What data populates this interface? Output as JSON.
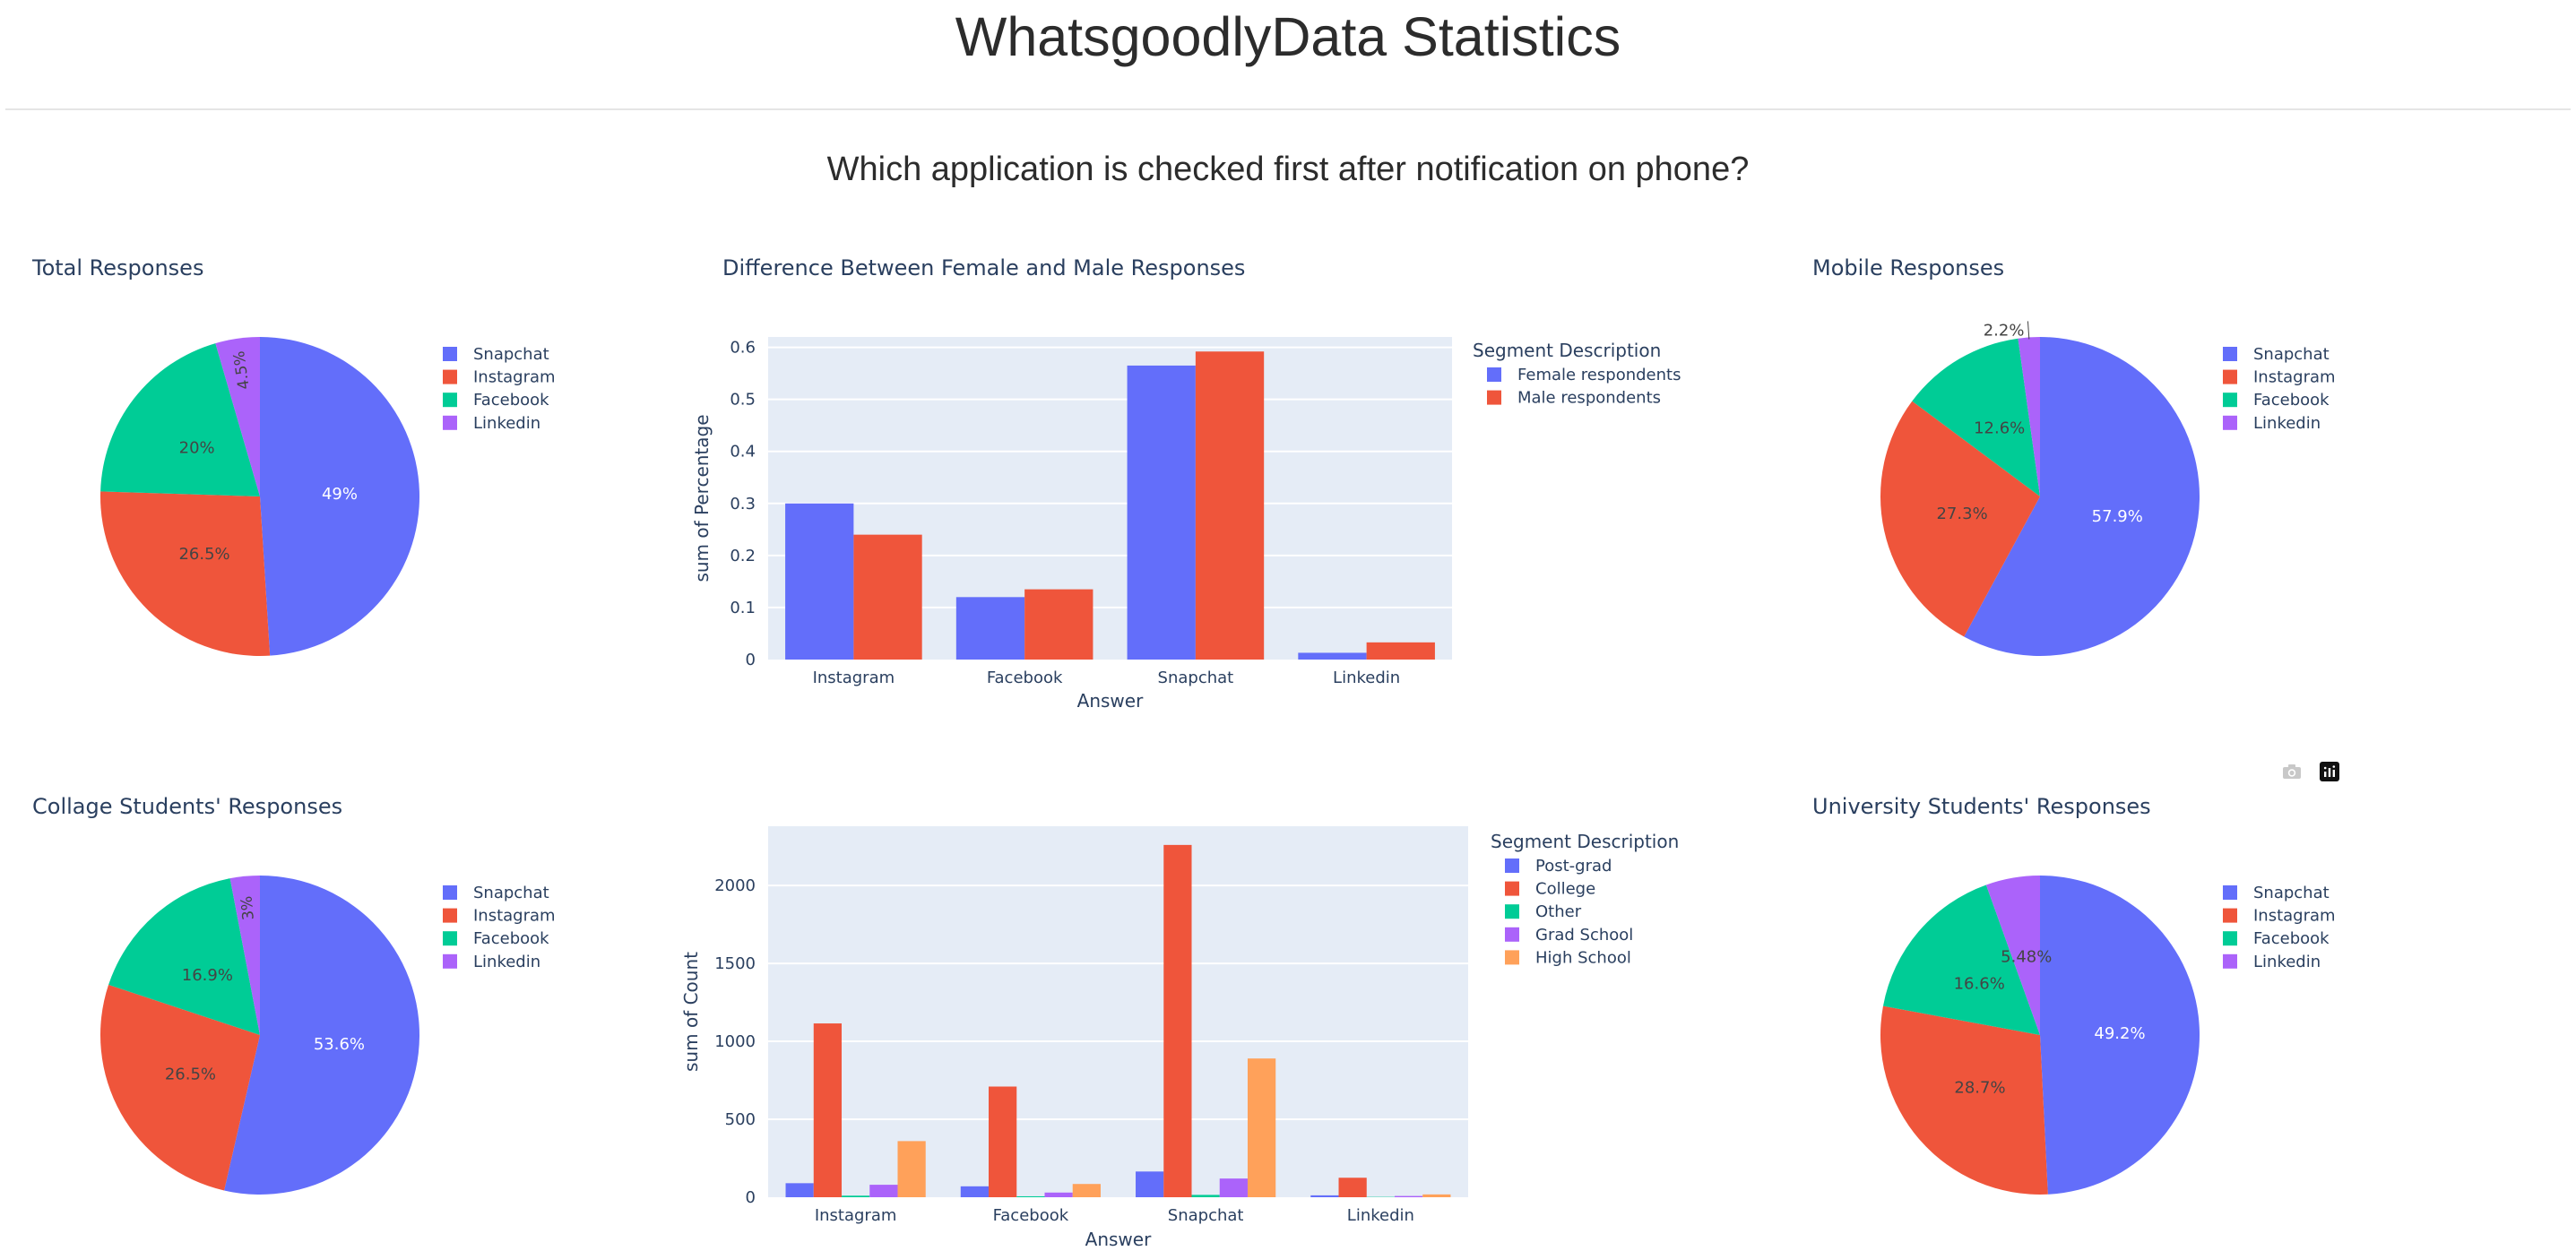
{
  "page": {
    "title": "WhatsgoodlyData Statistics",
    "question": "Which application is checked first after notification on phone?"
  },
  "colors": {
    "snapchat": "#636efa",
    "instagram": "#EF553B",
    "facebook": "#00cc96",
    "linkedin": "#ab63fa",
    "high_school": "#FFA15A",
    "plot_bg": "#E5ECF6"
  },
  "icons": [
    "camera-icon",
    "plotly-logo-icon"
  ],
  "chart_data": [
    {
      "id": "total",
      "type": "pie",
      "title": "Total Responses",
      "labels": [
        "Snapchat",
        "Instagram",
        "Facebook",
        "Linkedin"
      ],
      "values": [
        49,
        26.5,
        20,
        4.5
      ],
      "text_labels": [
        "49%",
        "26.5%",
        "20%",
        "4.5%"
      ],
      "legend": "right"
    },
    {
      "id": "gender",
      "type": "bar",
      "title": "Difference Between Female and Male Responses",
      "categories": [
        "Instagram",
        "Facebook",
        "Snapchat",
        "Linkedin"
      ],
      "series": [
        {
          "name": "Female respondents",
          "values": [
            0.3,
            0.12,
            0.565,
            0.013
          ]
        },
        {
          "name": "Male respondents",
          "values": [
            0.24,
            0.135,
            0.592,
            0.033
          ]
        }
      ],
      "xlabel": "Answer",
      "ylabel": "sum of Percentage",
      "ylim": [
        0,
        0.62
      ],
      "yticks": [
        "0",
        "0.1",
        "0.2",
        "0.3",
        "0.4",
        "0.5",
        "0.6"
      ],
      "legend_title": "Segment Description",
      "grid": true,
      "legend": "right"
    },
    {
      "id": "mobile",
      "type": "pie",
      "title": "Mobile Responses",
      "labels": [
        "Snapchat",
        "Instagram",
        "Facebook",
        "Linkedin"
      ],
      "values": [
        57.9,
        27.3,
        12.6,
        2.2
      ],
      "text_labels": [
        "57.9%",
        "27.3%",
        "12.6%",
        "2.2%"
      ],
      "legend": "right"
    },
    {
      "id": "college",
      "type": "pie",
      "title": "Collage Students' Responses",
      "labels": [
        "Snapchat",
        "Instagram",
        "Facebook",
        "Linkedin"
      ],
      "values": [
        53.6,
        26.5,
        16.9,
        3
      ],
      "text_labels": [
        "53.6%",
        "26.5%",
        "16.9%",
        "3%"
      ],
      "legend": "right"
    },
    {
      "id": "education",
      "type": "bar",
      "title": "",
      "categories": [
        "Instagram",
        "Facebook",
        "Snapchat",
        "Linkedin"
      ],
      "series": [
        {
          "name": "Post-grad",
          "values": [
            90,
            70,
            165,
            12
          ]
        },
        {
          "name": "College",
          "values": [
            1115,
            710,
            2260,
            125
          ]
        },
        {
          "name": "Other",
          "values": [
            10,
            6,
            15,
            2
          ]
        },
        {
          "name": "Grad School",
          "values": [
            80,
            30,
            120,
            8
          ]
        },
        {
          "name": "High School",
          "values": [
            360,
            85,
            890,
            18
          ]
        }
      ],
      "xlabel": "Answer",
      "ylabel": "sum of Count",
      "ylim": [
        0,
        2380
      ],
      "yticks": [
        "0",
        "500",
        "1000",
        "1500",
        "2000"
      ],
      "legend_title": "Segment Description",
      "grid": true,
      "legend": "right"
    },
    {
      "id": "university",
      "type": "pie",
      "title": "University Students' Responses",
      "labels": [
        "Snapchat",
        "Instagram",
        "Facebook",
        "Linkedin"
      ],
      "values": [
        49.2,
        28.7,
        16.6,
        5.48
      ],
      "text_labels": [
        "49.2%",
        "28.7%",
        "16.6%",
        "5.48%"
      ],
      "legend": "right"
    }
  ]
}
